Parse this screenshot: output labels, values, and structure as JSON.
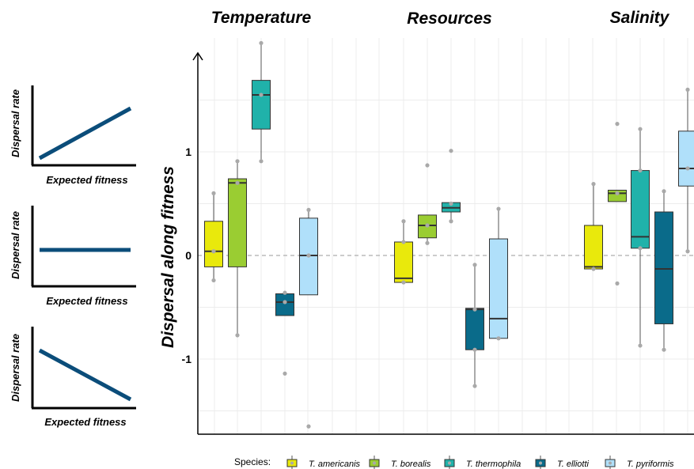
{
  "panels": [
    {
      "title": "Temperature"
    },
    {
      "title": "Resources"
    },
    {
      "title": "Salinity"
    }
  ],
  "concept_plots": [
    {
      "ylabel": "Dispersal rate",
      "xlabel": "Expected fitness",
      "trend": "positive"
    },
    {
      "ylabel": "Dispersal rate",
      "xlabel": "Expected fitness",
      "trend": "flat"
    },
    {
      "ylabel": "Dispersal rate",
      "xlabel": "Expected fitness",
      "trend": "negative"
    }
  ],
  "legend": {
    "title": "Species:",
    "placement": "bottom"
  },
  "chart_data": {
    "type": "box",
    "ylabel": "Dispersal along fitness",
    "ylim": [
      -1.72,
      1.9
    ],
    "yticks": [
      -1,
      0,
      1
    ],
    "ytick_labels": [
      "-1",
      "0",
      "1"
    ],
    "reference_line": 0,
    "grid": true,
    "series": [
      {
        "name": "T. americanis",
        "color": "#e9e90c"
      },
      {
        "name": "T. borealis",
        "color": "#9acd32"
      },
      {
        "name": "T. thermophila",
        "color": "#20b2aa"
      },
      {
        "name": "T. elliotti",
        "color": "#0a6b8a"
      },
      {
        "name": "T. pyriformis",
        "color": "#b0e0fa"
      }
    ],
    "groups": [
      {
        "name": "Temperature",
        "boxes": [
          {
            "species": "T. americanis",
            "whisker_low": -0.24,
            "q1": -0.11,
            "median": 0.04,
            "q3": 0.33,
            "whisker_high": 0.6,
            "points": [
              0.6,
              0.04,
              -0.24
            ]
          },
          {
            "species": "T. borealis",
            "whisker_low": -0.77,
            "q1": -0.11,
            "median": 0.7,
            "q3": 0.74,
            "whisker_high": 0.91,
            "points": [
              0.91,
              0.7,
              -0.77
            ]
          },
          {
            "species": "T. thermophila",
            "whisker_low": 0.91,
            "q1": 1.22,
            "median": 1.55,
            "q3": 1.69,
            "whisker_high": 2.05,
            "points": [
              2.05,
              1.55,
              0.91
            ]
          },
          {
            "species": "T. elliotti",
            "whisker_low": -0.58,
            "q1": -0.58,
            "median": -0.45,
            "q3": -0.37,
            "whisker_high": -0.37,
            "points": [
              -0.36,
              -0.45,
              -1.14
            ]
          },
          {
            "species": "T. pyriformis",
            "whisker_low": -0.38,
            "q1": -0.38,
            "median": 0.0,
            "q3": 0.36,
            "whisker_high": 0.44,
            "points": [
              0.44,
              0.0,
              -1.65
            ]
          }
        ]
      },
      {
        "name": "Resources",
        "boxes": [
          {
            "species": "T. americanis",
            "whisker_low": -0.26,
            "q1": -0.26,
            "median": -0.22,
            "q3": 0.13,
            "whisker_high": 0.33,
            "points": [
              0.33,
              0.13,
              -0.26
            ]
          },
          {
            "species": "T. borealis",
            "whisker_low": 0.12,
            "q1": 0.17,
            "median": 0.29,
            "q3": 0.39,
            "whisker_high": 0.39,
            "points": [
              0.87,
              0.29,
              0.12
            ]
          },
          {
            "species": "T. thermophila",
            "whisker_low": 0.33,
            "q1": 0.42,
            "median": 0.46,
            "q3": 0.51,
            "whisker_high": 0.51,
            "points": [
              1.01,
              0.5,
              0.33
            ]
          },
          {
            "species": "T. elliotti",
            "whisker_low": -1.26,
            "q1": -0.91,
            "median": -0.52,
            "q3": -0.51,
            "whisker_high": -0.09,
            "points": [
              -0.09,
              -0.52,
              -0.91,
              -1.26
            ]
          },
          {
            "species": "T. pyriformis",
            "whisker_low": -0.8,
            "q1": -0.8,
            "median": -0.61,
            "q3": 0.16,
            "whisker_high": 0.45,
            "points": [
              0.45,
              -0.8
            ]
          }
        ]
      },
      {
        "name": "Salinity",
        "boxes": [
          {
            "species": "T. americanis",
            "whisker_low": -0.13,
            "q1": -0.13,
            "median": -0.11,
            "q3": 0.29,
            "whisker_high": 0.69,
            "points": [
              0.69,
              -0.13
            ]
          },
          {
            "species": "T. borealis",
            "whisker_low": 0.52,
            "q1": 0.52,
            "median": 0.6,
            "q3": 0.63,
            "whisker_high": 0.63,
            "points": [
              1.27,
              0.6,
              -0.27
            ]
          },
          {
            "species": "T. thermophila",
            "whisker_low": -0.87,
            "q1": 0.07,
            "median": 0.18,
            "q3": 0.82,
            "whisker_high": 1.22,
            "points": [
              1.22,
              0.82,
              0.07,
              -0.87
            ]
          },
          {
            "species": "T. elliotti",
            "whisker_low": -0.91,
            "q1": -0.66,
            "median": -0.13,
            "q3": 0.42,
            "whisker_high": 0.62,
            "points": [
              0.62,
              -0.91
            ]
          },
          {
            "species": "T. pyriformis",
            "whisker_low": 0.04,
            "q1": 0.67,
            "median": 0.84,
            "q3": 1.2,
            "whisker_high": 1.6,
            "points": [
              1.6,
              0.84,
              0.04
            ]
          }
        ]
      }
    ]
  }
}
